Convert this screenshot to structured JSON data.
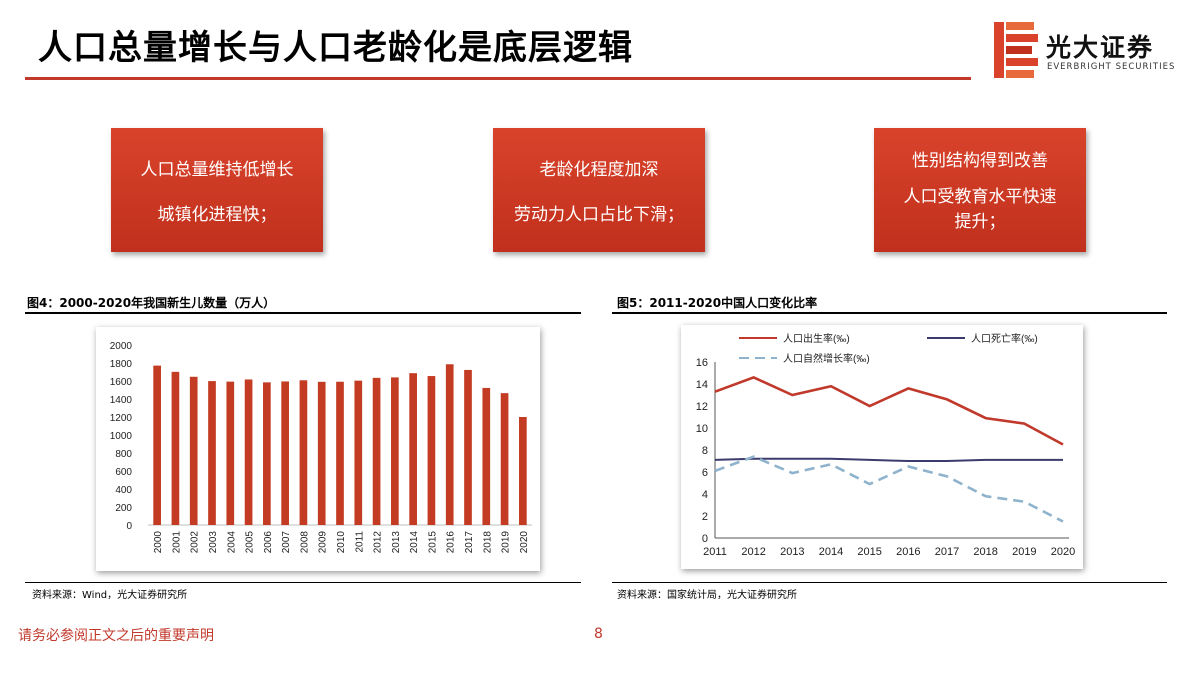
{
  "slide": {
    "title": "人口总量增长与人口老龄化是底层逻辑",
    "logo": {
      "cn": "光大证券",
      "en": "EVERBRIGHT SECURITIES"
    },
    "boxes": [
      {
        "lines": [
          "人口总量维持低增长",
          "城镇化进程快；"
        ]
      },
      {
        "lines": [
          "老龄化程度加深",
          "劳动力人口占比下滑；"
        ]
      },
      {
        "lines": [
          "性别结构得到改善",
          "人口受教育水平快速提升；"
        ]
      }
    ],
    "footer": {
      "note": "请务必参阅正文之后的重要声明",
      "page": "8"
    }
  },
  "figures": [
    {
      "title": "图4：2000-2020年我国新生儿数量（万人）",
      "source": "资料来源：Wind，光大证券研究所"
    },
    {
      "title": "图5：2011-2020中国人口变化比率",
      "source": "资料来源：国家统计局，光大证券研究所"
    }
  ],
  "colors": {
    "accent": "#c0392b",
    "bar": "#c23b22",
    "birth": "#c0392b",
    "death": "#3b3b6e",
    "growth": "#8fb3cc"
  },
  "chart_data": [
    {
      "type": "bar",
      "title": "",
      "categories": [
        "2000",
        "2001",
        "2002",
        "2003",
        "2004",
        "2005",
        "2006",
        "2007",
        "2008",
        "2009",
        "2010",
        "2011",
        "2012",
        "2013",
        "2014",
        "2015",
        "2016",
        "2017",
        "2018",
        "2019",
        "2020"
      ],
      "values": [
        1771,
        1702,
        1647,
        1599,
        1593,
        1617,
        1585,
        1595,
        1608,
        1591,
        1592,
        1604,
        1635,
        1640,
        1687,
        1655,
        1786,
        1723,
        1523,
        1465,
        1200
      ],
      "ylim": [
        0,
        2000
      ],
      "yticks": [
        "0",
        "200",
        "400",
        "600",
        "800",
        "1000",
        "1200",
        "1400",
        "1600",
        "1800",
        "2000"
      ],
      "grid": false
    },
    {
      "type": "line",
      "title": "",
      "x": [
        "2011",
        "2012",
        "2013",
        "2014",
        "2015",
        "2016",
        "2017",
        "2018",
        "2019",
        "2020"
      ],
      "ylim": [
        0,
        16
      ],
      "yticks": [
        "0",
        "2",
        "4",
        "6",
        "8",
        "10",
        "12",
        "14",
        "16"
      ],
      "legend_position": "top",
      "series": [
        {
          "name": "人口出生率(‰)",
          "values": [
            13.3,
            14.6,
            13.0,
            13.8,
            12.0,
            13.6,
            12.6,
            10.9,
            10.4,
            8.5
          ]
        },
        {
          "name": "人口死亡率(‰)",
          "values": [
            7.1,
            7.2,
            7.2,
            7.2,
            7.1,
            7.0,
            7.0,
            7.1,
            7.1,
            7.1
          ]
        },
        {
          "name": "人口自然增长率(‰)",
          "values": [
            6.1,
            7.4,
            5.9,
            6.7,
            4.9,
            6.5,
            5.6,
            3.8,
            3.3,
            1.5
          ]
        }
      ]
    }
  ]
}
